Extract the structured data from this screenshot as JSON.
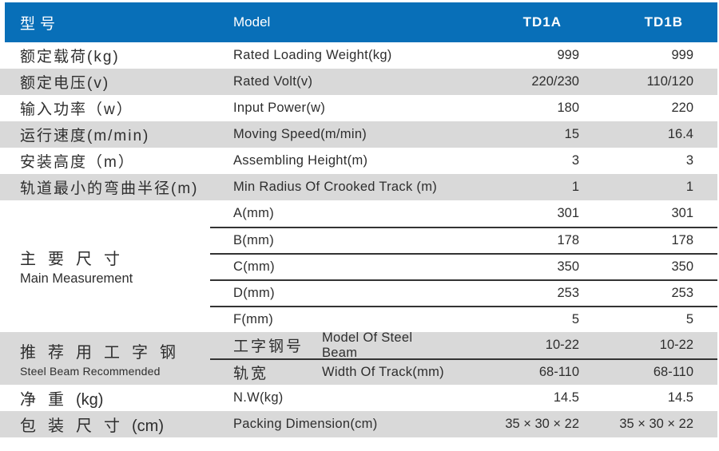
{
  "colors": {
    "header_bg": "#086fb8",
    "stripe_gray": "#d9d9d9",
    "separator_line": "#333333",
    "text": "#2e2e2e",
    "header_text": "#ffffff"
  },
  "header": {
    "col_cn": "型号",
    "col_en": "Model",
    "col_a": "TD1A",
    "col_b": "TD1B"
  },
  "rows_top": [
    {
      "cn": "额定载荷(kg)",
      "en": "Rated Loading Weight(kg)",
      "a": "999",
      "b": "999"
    },
    {
      "cn": "额定电压(v)",
      "en": "Rated Volt(v)",
      "a": "220/230",
      "b": "110/120"
    },
    {
      "cn": "输入功率（w）",
      "en": "Input Power(w)",
      "a": "180",
      "b": "220"
    },
    {
      "cn": "运行速度(m/min)",
      "en": "Moving Speed(m/min)",
      "a": "15",
      "b": "16.4"
    },
    {
      "cn": "安装高度（m）",
      "en": "Assembling Height(m)",
      "a": "3",
      "b": "3"
    },
    {
      "cn": "轨道最小的弯曲半径(m)",
      "en": "Min Radius Of Crooked Track (m)",
      "a": "1",
      "b": "1"
    }
  ],
  "main_measurement": {
    "cn": "主要尺寸",
    "en": "Main Measurement",
    "rows": [
      {
        "label": "A(mm)",
        "a": "301",
        "b": "301"
      },
      {
        "label": "B(mm)",
        "a": "178",
        "b": "178"
      },
      {
        "label": "C(mm)",
        "a": "350",
        "b": "350"
      },
      {
        "label": "D(mm)",
        "a": "253",
        "b": "253"
      },
      {
        "label": "F(mm)",
        "a": "5",
        "b": "5"
      }
    ]
  },
  "steel_beam": {
    "cn": "推荐用工字钢",
    "en": "Steel Beam Recommended",
    "rows": [
      {
        "cn": "工字钢号",
        "en": "Model Of Steel Beam",
        "a": "10-22",
        "b": "10-22"
      },
      {
        "cn": "轨宽",
        "en": "Width Of Track(mm)",
        "a": "68-110",
        "b": "68-110"
      }
    ]
  },
  "rows_bottom": [
    {
      "cn": "净重",
      "suffix": "(kg)",
      "en": "N.W(kg)",
      "a": "14.5",
      "b": "14.5"
    },
    {
      "cn": "包装尺寸",
      "suffix": "(cm)",
      "en": "Packing Dimension(cm)",
      "a": "35 × 30 × 22",
      "b": "35 × 30 × 22"
    }
  ],
  "chart_data": {
    "type": "table",
    "columns": [
      "型号",
      "Model",
      "TD1A",
      "TD1B"
    ],
    "rows": [
      [
        "额定载荷(kg)",
        "Rated Loading Weight(kg)",
        "999",
        "999"
      ],
      [
        "额定电压(v)",
        "Rated Volt(v)",
        "220/230",
        "110/120"
      ],
      [
        "输入功率（w）",
        "Input Power(w)",
        "180",
        "220"
      ],
      [
        "运行速度(m/min)",
        "Moving Speed(m/min)",
        "15",
        "16.4"
      ],
      [
        "安装高度（m）",
        "Assembling Height(m)",
        "3",
        "3"
      ],
      [
        "轨道最小的弯曲半径(m)",
        "Min Radius Of Crooked Track (m)",
        "1",
        "1"
      ],
      [
        "主要尺寸 Main Measurement",
        "A(mm)",
        "301",
        "301"
      ],
      [
        "主要尺寸 Main Measurement",
        "B(mm)",
        "178",
        "178"
      ],
      [
        "主要尺寸 Main Measurement",
        "C(mm)",
        "350",
        "350"
      ],
      [
        "主要尺寸 Main Measurement",
        "D(mm)",
        "253",
        "253"
      ],
      [
        "主要尺寸 Main Measurement",
        "F(mm)",
        "5",
        "5"
      ],
      [
        "推荐用工字钢 Steel Beam Recommended",
        "工字钢号 Model Of Steel Beam",
        "10-22",
        "10-22"
      ],
      [
        "推荐用工字钢 Steel Beam Recommended",
        "轨宽 Width Of Track(mm)",
        "68-110",
        "68-110"
      ],
      [
        "净重(kg)",
        "N.W(kg)",
        "14.5",
        "14.5"
      ],
      [
        "包装尺寸(cm)",
        "Packing Dimension(cm)",
        "35 × 30 × 22",
        "35 × 30 × 22"
      ]
    ]
  }
}
